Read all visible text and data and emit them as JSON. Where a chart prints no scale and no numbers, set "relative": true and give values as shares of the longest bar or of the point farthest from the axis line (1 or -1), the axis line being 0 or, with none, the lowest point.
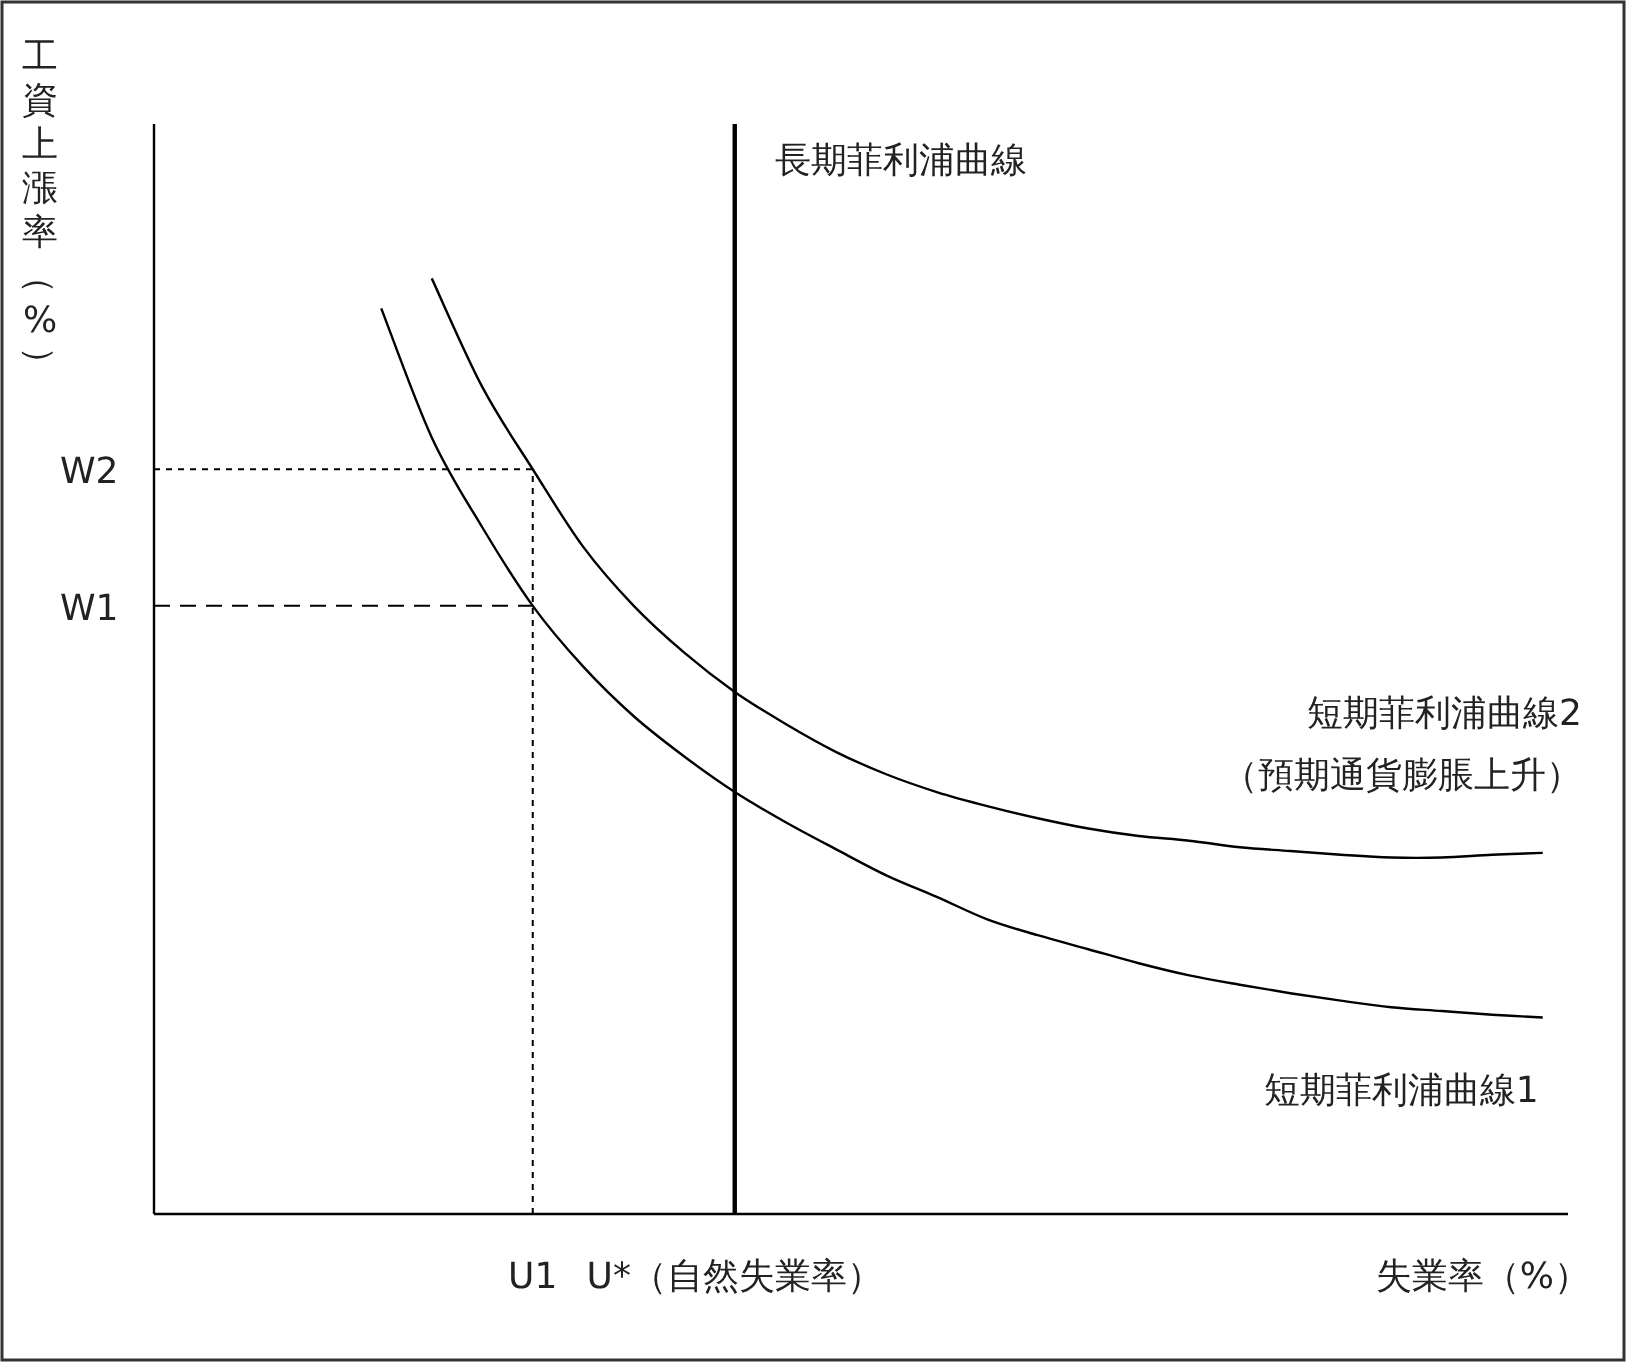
{
  "chart_data": {
    "type": "line",
    "relative": true,
    "xlabel": "失業率（%）",
    "ylabel": "工資上漲率（%）",
    "categories": [
      null,
      null,
      null,
      null,
      null,
      null,
      null,
      "U1",
      null,
      null,
      null,
      "U*（自然失業率）",
      null,
      null,
      null,
      null,
      null,
      null,
      null,
      null,
      null,
      null,
      null,
      null,
      null,
      null,
      null,
      null
    ],
    "series": [
      {
        "name": "短期菲利浦曲線1",
        "color": "#000000",
        "values": [
          null,
          null,
          null,
          null,
          0.968,
          0.83,
          0.734,
          0.65,
          0.585,
          0.532,
          0.489,
          0.451,
          0.419,
          0.39,
          0.362,
          0.339,
          0.315,
          0.298,
          0.283,
          0.268,
          0.255,
          0.245,
          0.236,
          0.228,
          0.221,
          0.217,
          0.213,
          0.21
        ]
      },
      {
        "name": "短期菲利浦曲線2\n（預期通貨膨脹上升）",
        "color": "#000000",
        "values": [
          null,
          null,
          null,
          null,
          null,
          1,
          0.884,
          0.796,
          0.713,
          0.65,
          0.6,
          0.558,
          0.524,
          0.494,
          0.47,
          0.451,
          0.436,
          0.423,
          0.412,
          0.404,
          0.399,
          0.392,
          0.388,
          0.384,
          0.381,
          0.381,
          0.384,
          0.386
        ]
      }
    ],
    "ref_lines": [
      {
        "axis": "x",
        "value": "U*（自然失業率）",
        "label": "長期菲利浦曲線",
        "line_style": "solid",
        "color": "#000000"
      },
      {
        "axis": "x",
        "value": "U1",
        "line_style": "dotted",
        "color": "#000000"
      },
      {
        "axis": "y",
        "value": 0.796,
        "label": "W2",
        "line_style": "dotted",
        "color": "#000000"
      },
      {
        "axis": "y",
        "value": 0.65,
        "label": "W1",
        "line_style": "dashed",
        "color": "#000000"
      }
    ],
    "marker": "none",
    "line_style": "solid"
  }
}
